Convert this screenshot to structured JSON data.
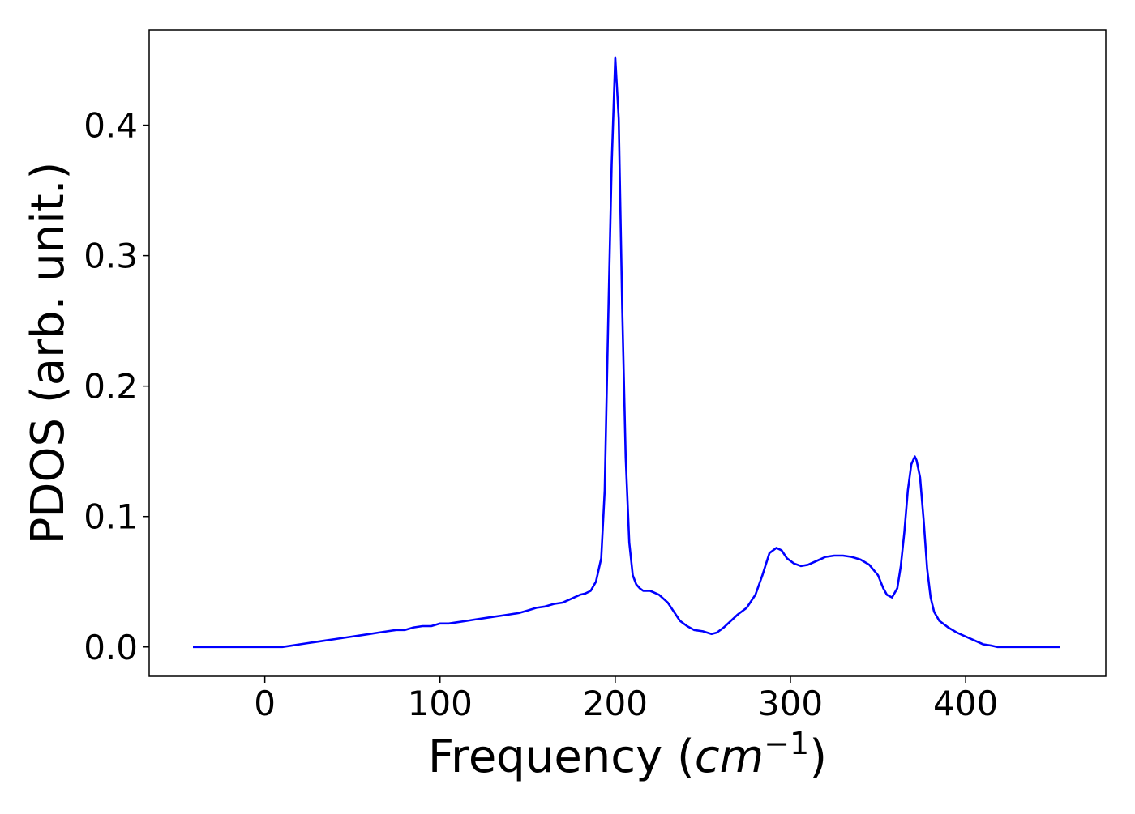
{
  "chart_data": {
    "type": "line",
    "title": "",
    "xlabel": "Frequency",
    "xlabel_unit_base": "cm",
    "xlabel_unit_exp": "−1",
    "ylabel": "PDOS (arb. unit.)",
    "xlim": [
      -66,
      480
    ],
    "ylim": [
      -0.0225,
      0.473
    ],
    "xticks": [
      0,
      100,
      200,
      300,
      400
    ],
    "xtick_labels": [
      "0",
      "100",
      "200",
      "300",
      "400"
    ],
    "yticks": [
      0.0,
      0.1,
      0.2,
      0.3,
      0.4
    ],
    "ytick_labels": [
      "0.0",
      "0.1",
      "0.2",
      "0.3",
      "0.4"
    ],
    "grid": false,
    "legend": "none",
    "series": [
      {
        "color": "#0000ff",
        "x": [
          -41,
          -20,
          0,
          10,
          15,
          20,
          25,
          30,
          35,
          40,
          45,
          50,
          55,
          60,
          65,
          70,
          75,
          80,
          85,
          90,
          95,
          100,
          105,
          110,
          115,
          120,
          125,
          130,
          135,
          140,
          145,
          150,
          155,
          160,
          165,
          170,
          175,
          180,
          183,
          186,
          189,
          192,
          194,
          196,
          198,
          200,
          202,
          204,
          206,
          208,
          210,
          212,
          214,
          216,
          218,
          220,
          225,
          230,
          233,
          237,
          241,
          245,
          250,
          255,
          258,
          262,
          266,
          270,
          275,
          280,
          284,
          288,
          292,
          295,
          298,
          302,
          306,
          310,
          315,
          320,
          325,
          330,
          335,
          340,
          345,
          350,
          353,
          355,
          358,
          361,
          363,
          365,
          367,
          369,
          371,
          372,
          374,
          376,
          378,
          380,
          382,
          385,
          390,
          395,
          400,
          405,
          410,
          415,
          418,
          420,
          425,
          454
        ],
        "y": [
          0.0,
          0.0,
          0.0,
          0.0,
          0.001,
          0.002,
          0.003,
          0.004,
          0.005,
          0.006,
          0.007,
          0.008,
          0.009,
          0.01,
          0.011,
          0.012,
          0.013,
          0.013,
          0.015,
          0.016,
          0.016,
          0.018,
          0.018,
          0.019,
          0.02,
          0.021,
          0.022,
          0.023,
          0.024,
          0.025,
          0.026,
          0.028,
          0.03,
          0.031,
          0.033,
          0.034,
          0.037,
          0.04,
          0.041,
          0.043,
          0.05,
          0.068,
          0.12,
          0.25,
          0.37,
          0.452,
          0.405,
          0.26,
          0.145,
          0.08,
          0.055,
          0.048,
          0.045,
          0.043,
          0.043,
          0.043,
          0.04,
          0.034,
          0.028,
          0.02,
          0.016,
          0.013,
          0.012,
          0.01,
          0.011,
          0.015,
          0.02,
          0.025,
          0.03,
          0.04,
          0.055,
          0.072,
          0.076,
          0.074,
          0.068,
          0.064,
          0.062,
          0.063,
          0.066,
          0.069,
          0.07,
          0.07,
          0.069,
          0.067,
          0.063,
          0.055,
          0.045,
          0.04,
          0.038,
          0.045,
          0.062,
          0.088,
          0.12,
          0.14,
          0.146,
          0.143,
          0.13,
          0.098,
          0.06,
          0.038,
          0.027,
          0.02,
          0.015,
          0.011,
          0.008,
          0.005,
          0.002,
          0.001,
          0.0,
          0.0,
          0.0,
          0.0
        ]
      }
    ]
  }
}
